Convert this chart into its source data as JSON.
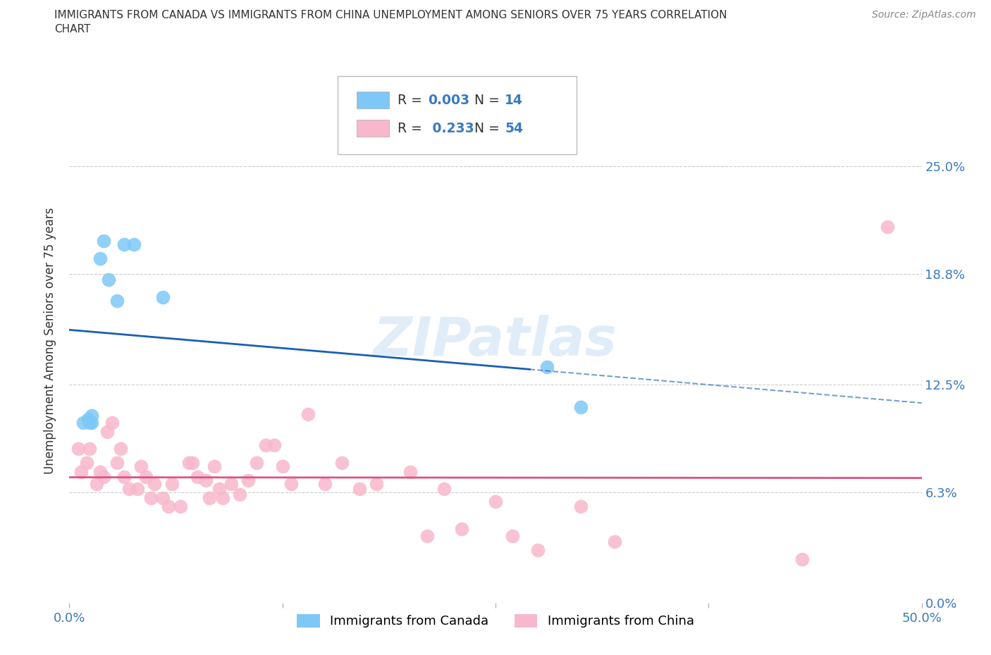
{
  "title_line1": "IMMIGRANTS FROM CANADA VS IMMIGRANTS FROM CHINA UNEMPLOYMENT AMONG SENIORS OVER 75 YEARS CORRELATION",
  "title_line2": "CHART",
  "source": "Source: ZipAtlas.com",
  "ylabel": "Unemployment Among Seniors over 75 years",
  "xlim": [
    0.0,
    0.5
  ],
  "ylim": [
    0.0,
    0.3
  ],
  "yticks": [
    0.0,
    0.063,
    0.125,
    0.188,
    0.25
  ],
  "ytick_labels": [
    "0.0%",
    "6.3%",
    "12.5%",
    "18.8%",
    "25.0%"
  ],
  "xticks": [
    0.0,
    0.125,
    0.25,
    0.375,
    0.5
  ],
  "xtick_labels": [
    "0.0%",
    "",
    "",
    "",
    "50.0%"
  ],
  "canada_color": "#7ec8f7",
  "china_color": "#f7b8cc",
  "canada_line_color": "#1a5fb4",
  "canada_line_dash_color": "#7ec8f7",
  "china_line_color": "#e05080",
  "background_color": "#ffffff",
  "grid_color": "#cccccc",
  "R_canada": 0.003,
  "N_canada": 14,
  "R_china": 0.233,
  "N_china": 54,
  "canada_x": [
    0.008,
    0.012,
    0.013,
    0.011,
    0.013,
    0.018,
    0.02,
    0.023,
    0.028,
    0.032,
    0.038,
    0.055,
    0.28,
    0.3
  ],
  "canada_y": [
    0.103,
    0.103,
    0.103,
    0.105,
    0.107,
    0.197,
    0.207,
    0.185,
    0.173,
    0.205,
    0.205,
    0.175,
    0.135,
    0.112
  ],
  "china_x": [
    0.005,
    0.007,
    0.01,
    0.012,
    0.016,
    0.018,
    0.02,
    0.022,
    0.025,
    0.028,
    0.03,
    0.032,
    0.035,
    0.04,
    0.042,
    0.045,
    0.048,
    0.05,
    0.055,
    0.058,
    0.06,
    0.065,
    0.07,
    0.072,
    0.075,
    0.08,
    0.082,
    0.085,
    0.088,
    0.09,
    0.095,
    0.1,
    0.105,
    0.11,
    0.115,
    0.12,
    0.125,
    0.13,
    0.14,
    0.15,
    0.16,
    0.17,
    0.18,
    0.2,
    0.21,
    0.22,
    0.23,
    0.25,
    0.26,
    0.275,
    0.3,
    0.32,
    0.43,
    0.48
  ],
  "china_y": [
    0.088,
    0.075,
    0.08,
    0.088,
    0.068,
    0.075,
    0.072,
    0.098,
    0.103,
    0.08,
    0.088,
    0.072,
    0.065,
    0.065,
    0.078,
    0.072,
    0.06,
    0.068,
    0.06,
    0.055,
    0.068,
    0.055,
    0.08,
    0.08,
    0.072,
    0.07,
    0.06,
    0.078,
    0.065,
    0.06,
    0.068,
    0.062,
    0.07,
    0.08,
    0.09,
    0.09,
    0.078,
    0.068,
    0.108,
    0.068,
    0.08,
    0.065,
    0.068,
    0.075,
    0.038,
    0.065,
    0.042,
    0.058,
    0.038,
    0.03,
    0.055,
    0.035,
    0.025,
    0.215
  ],
  "watermark": "ZIPatlas",
  "legend_canada_label": "Immigrants from Canada",
  "legend_china_label": "Immigrants from China"
}
